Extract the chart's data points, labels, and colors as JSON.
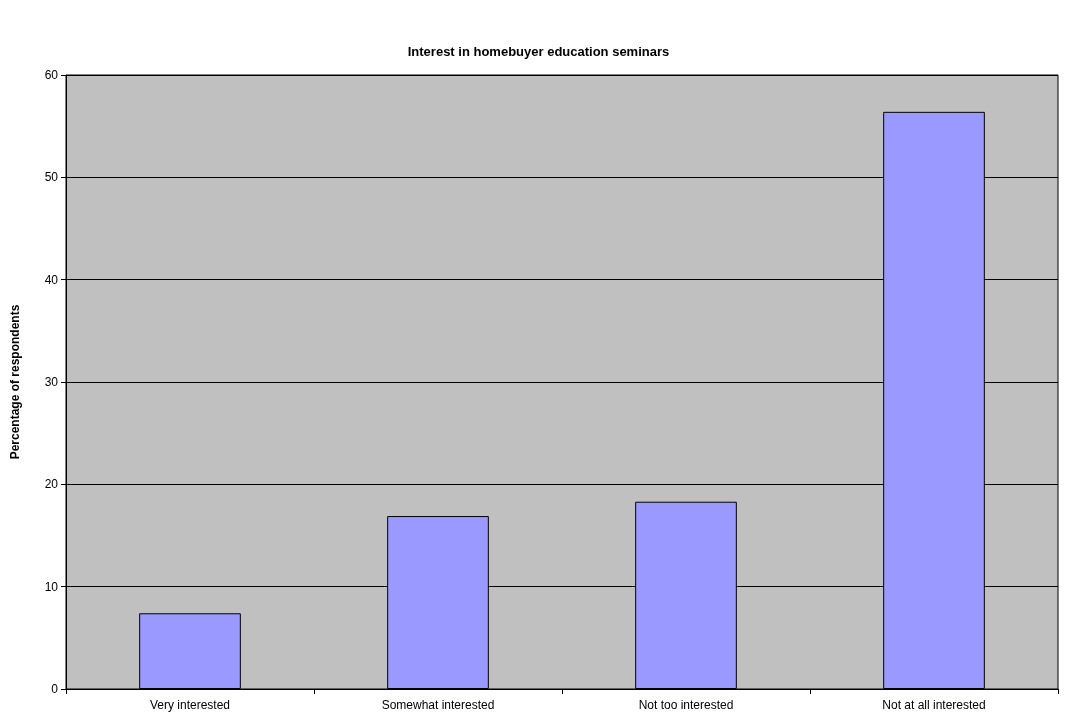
{
  "chart_data": {
    "type": "bar",
    "title": "Interest in homebuyer education seminars",
    "ylabel": "Percentage of respondents",
    "categories": [
      "Very interested",
      "Somewhat interested",
      "Not too interested",
      "Not at all interested"
    ],
    "values": [
      7.4,
      16.9,
      18.3,
      56.4
    ],
    "color": "#9999ff",
    "ylim": [
      0,
      60
    ],
    "yticks": [
      0,
      10,
      20,
      30,
      40,
      50,
      60
    ],
    "grid": "y"
  }
}
